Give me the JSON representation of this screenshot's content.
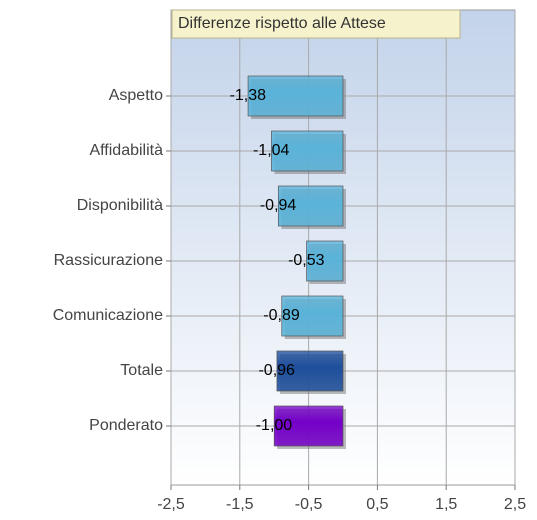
{
  "chart_data": {
    "type": "bar",
    "orientation": "horizontal",
    "title": "Differenze rispetto alle Attese",
    "categories": [
      "Aspetto",
      "Affidabilità",
      "Disponibilità",
      "Rassicurazione",
      "Comunicazione",
      "Totale",
      "Ponderato"
    ],
    "values": [
      -1.38,
      -1.04,
      -0.94,
      -0.53,
      -0.89,
      -0.96,
      -1.0
    ],
    "value_labels": [
      "-1,38",
      "-1,04",
      "-0,94",
      "-0,53",
      "-0,89",
      "-0,96",
      "-1,00"
    ],
    "colors": [
      "#5ab3d9",
      "#5ab3d9",
      "#5ab3d9",
      "#5ab3d9",
      "#5ab3d9",
      "#1e4f9c",
      "#7400c8"
    ],
    "xlim": [
      -2.5,
      2.5
    ],
    "xticks": [
      {
        "value": -2.5,
        "label": "-2,5"
      },
      {
        "value": -1.5,
        "label": "-1,5"
      },
      {
        "value": -0.5,
        "label": "-0,5"
      },
      {
        "value": 0.5,
        "label": "0,5"
      },
      {
        "value": 1.5,
        "label": "1,5"
      },
      {
        "value": 2.5,
        "label": "2,5"
      }
    ],
    "grid": true
  }
}
